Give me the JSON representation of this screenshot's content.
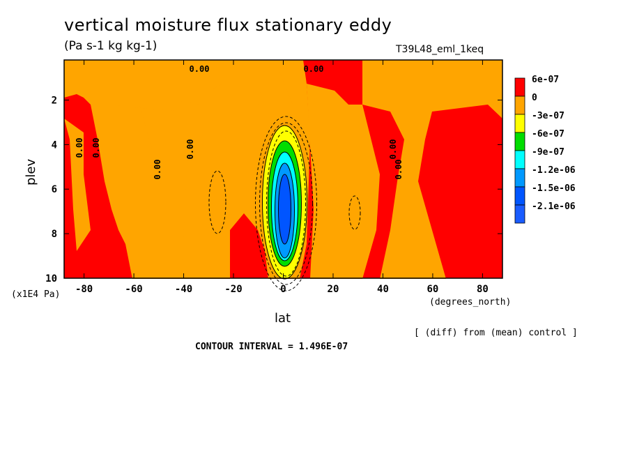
{
  "chart_data": {
    "type": "heatmap",
    "title": "vertical moisture flux stationary eddy",
    "units": "(Pa s-1 kg kg-1)",
    "run_label": "T39L48_eml_1keq",
    "xlabel": "lat",
    "x_units": "(degrees_north)",
    "ylabel": "plev",
    "y_units": "(x1E4 Pa)",
    "xlim": [
      -88,
      88
    ],
    "ylim": [
      10,
      0.2
    ],
    "x_ticks": [
      "-80",
      "-60",
      "-40",
      "-20",
      "0",
      "20",
      "40",
      "60",
      "80"
    ],
    "x_tick_values": [
      -80,
      -60,
      -40,
      -20,
      0,
      20,
      40,
      60,
      80
    ],
    "y_ticks": [
      "2",
      "4",
      "6",
      "8",
      "10"
    ],
    "y_tick_values": [
      2,
      4,
      6,
      8,
      10
    ],
    "source_note": "[ (diff) from (mean) control ]",
    "contour_interval": "CONTOUR INTERVAL = 1.496E-07",
    "contour_labels": [
      "0.00",
      "0.00",
      "0.00",
      "0.00",
      "0.00",
      "0.00",
      "0.00",
      "0.00"
    ],
    "legend": [
      {
        "label": "6e-07",
        "color": "#ff0000"
      },
      {
        "label": "0",
        "color": "#ffa500"
      },
      {
        "label": "-3e-07",
        "color": "#ffff00"
      },
      {
        "label": "-6e-07",
        "color": "#00dd00"
      },
      {
        "label": "-9e-07",
        "color": "#00ffff"
      },
      {
        "label": "-1.2e-06",
        "color": "#0099ff"
      },
      {
        "label": "-1.5e-06",
        "color": "#0055ff"
      },
      {
        "label": "-2.1e-06",
        "color": ""
      }
    ],
    "regions": {
      "positive_color": "#ff0000",
      "near_zero_color": "#ffa500",
      "description_values": {
        "equatorial_minimum_lat": 0,
        "equatorial_minimum_plev": 6.5,
        "equatorial_minimum_value": -2.1e-06
      }
    }
  }
}
